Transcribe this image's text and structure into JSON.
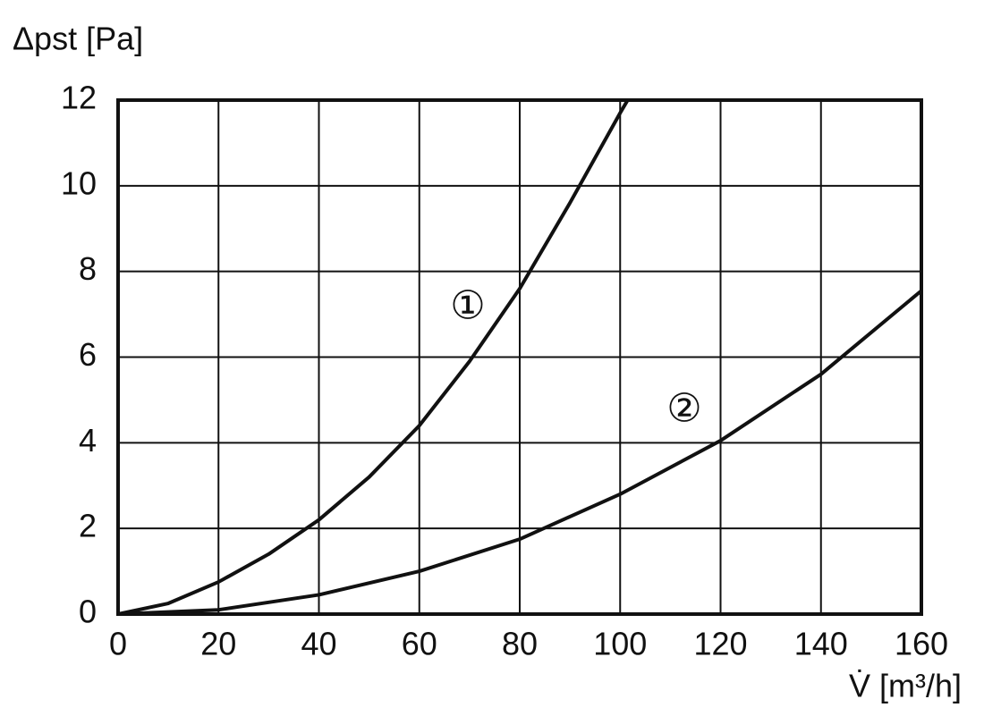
{
  "chart_data": {
    "type": "line",
    "y_label": "Δpst [Pa]",
    "x_label": "V̇ [m³/h]",
    "xlim": [
      0,
      160
    ],
    "ylim": [
      0,
      12
    ],
    "xticks": [
      0,
      20,
      40,
      60,
      80,
      100,
      120,
      140,
      160
    ],
    "yticks": [
      0,
      2,
      4,
      6,
      8,
      10,
      12
    ],
    "grid": true,
    "series": [
      {
        "name": "①",
        "color": "#111111",
        "x": [
          0,
          10,
          20,
          30,
          40,
          50,
          60,
          70,
          80,
          90,
          100,
          101.5
        ],
        "values": [
          0,
          0.25,
          0.75,
          1.4,
          2.2,
          3.2,
          4.4,
          5.9,
          7.6,
          9.6,
          11.7,
          12
        ]
      },
      {
        "name": "②",
        "color": "#111111",
        "x": [
          0,
          20,
          40,
          60,
          80,
          100,
          120,
          140,
          160
        ],
        "values": [
          0,
          0.1,
          0.45,
          1.0,
          1.75,
          2.8,
          4.05,
          5.6,
          7.55
        ]
      }
    ]
  }
}
